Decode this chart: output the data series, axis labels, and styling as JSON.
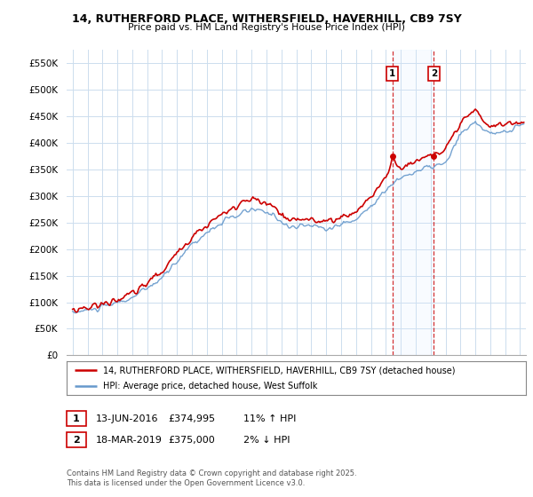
{
  "title": "14, RUTHERFORD PLACE, WITHERSFIELD, HAVERHILL, CB9 7SY",
  "subtitle": "Price paid vs. HM Land Registry's House Price Index (HPI)",
  "legend_line1": "14, RUTHERFORD PLACE, WITHERSFIELD, HAVERHILL, CB9 7SY (detached house)",
  "legend_line2": "HPI: Average price, detached house, West Suffolk",
  "annotation1_date": "13-JUN-2016",
  "annotation1_price": "£374,995",
  "annotation1_hpi": "11% ↑ HPI",
  "annotation2_date": "18-MAR-2019",
  "annotation2_price": "£375,000",
  "annotation2_hpi": "2% ↓ HPI",
  "footnote": "Contains HM Land Registry data © Crown copyright and database right 2025.\nThis data is licensed under the Open Government Licence v3.0.",
  "ylim": [
    0,
    575000
  ],
  "yticks": [
    0,
    50000,
    100000,
    150000,
    200000,
    250000,
    300000,
    350000,
    400000,
    450000,
    500000,
    550000
  ],
  "ytick_labels": [
    "£0",
    "£50K",
    "£100K",
    "£150K",
    "£200K",
    "£250K",
    "£300K",
    "£350K",
    "£400K",
    "£450K",
    "£500K",
    "£550K"
  ],
  "sale1_x": 2016.44,
  "sale1_y": 374995,
  "sale2_x": 2019.21,
  "sale2_y": 375000,
  "vline1_x": 2016.44,
  "vline2_x": 2019.21,
  "price_color": "#cc0000",
  "hpi_color": "#6699cc",
  "hpi_fill_color": "#ddeeff",
  "background_color": "#ffffff",
  "grid_color": "#ccddee",
  "annotation_box_color": "#cc0000",
  "xlim_left": 1994.6,
  "xlim_right": 2025.4
}
